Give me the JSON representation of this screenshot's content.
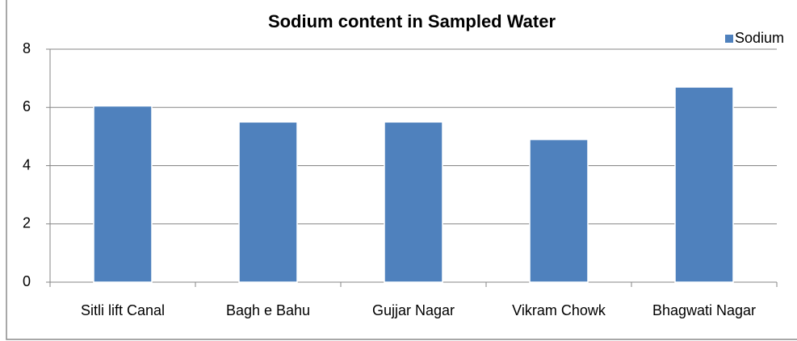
{
  "chart_data": {
    "type": "bar",
    "title": "Sodium content in Sampled Water",
    "categories": [
      "Sitli lift Canal",
      "Bagh e Bahu",
      "Gujjar Nagar",
      "Vikram Chowk",
      "Bhagwati Nagar"
    ],
    "series": [
      {
        "name": "Sodium",
        "color": "#4f81bd",
        "values": [
          6.05,
          5.5,
          5.5,
          4.9,
          6.7
        ]
      }
    ],
    "ylim": [
      0,
      8
    ],
    "yticks": [
      0,
      2,
      4,
      6,
      8
    ],
    "grid": true,
    "legend": "top-right"
  }
}
